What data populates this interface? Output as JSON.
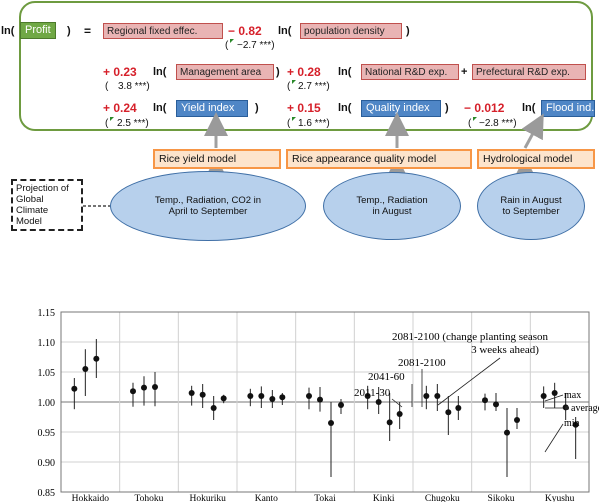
{
  "equation": {
    "ln": "ln(",
    "lhs_var": "Profit",
    "close_paren": ")",
    "equals": "=",
    "regional_fixed": "Regional fixed effec.",
    "c1": "− 0.82",
    "v1": "population density",
    "t1_a": "(",
    "t1_b": "−2.7  ***)",
    "c2": "+ 0.23",
    "v2": "Management area",
    "t2_a": "(",
    "t2_b": "3.8   ***)",
    "c3": "+ 0.28",
    "v3": "National R&D exp.",
    "plus": "+",
    "v3b": "Prefectural R&D exp.",
    "t3_a": "(",
    "t3_b": "2.7   ***)",
    "c4": "+ 0.24",
    "v4": "Yield index",
    "t4_a": "(",
    "t4_b": "2.5   ***)",
    "c5": "+ 0.15",
    "v5": "Quality index",
    "t5_a": "(",
    "t5_b": "1.6   ***)",
    "c6": "− 0.012",
    "v6": "Flood ind.",
    "t6_a": "(",
    "t6_b": "−2.8  ***)"
  },
  "models": {
    "rice_yield": "Rice yield model",
    "rice_quality": "Rice appearance quality model",
    "hydrological": "Hydrological model"
  },
  "climate_box": [
    "Projection of",
    "Global Climate",
    "Model"
  ],
  "inputs": {
    "yield_inputs": [
      "Temp., Radiation, CO2 in",
      "April to September"
    ],
    "quality_inputs": [
      "Temp., Radiation",
      "in August"
    ],
    "hydro_inputs": [
      "Rain in August",
      "to September"
    ]
  },
  "colors": {
    "green": "#70a845",
    "blue": "#4f86c6",
    "pink": "#e9b4b4",
    "orange": "#f79646",
    "red": "#d6202a"
  },
  "chart_data": {
    "type": "scatter",
    "categories": [
      "Hokkaido",
      "Tohoku",
      "Hokuriku",
      "Kanto",
      "Tokai",
      "Kinki",
      "Chugoku",
      "Sikoku",
      "Kyushu"
    ],
    "ylim": [
      0.85,
      1.15
    ],
    "yticks": [
      "0.85",
      "0.90",
      "0.95",
      "1.00",
      "1.05",
      "1.10",
      "1.15"
    ],
    "grid": true,
    "series": [
      {
        "name": "2011-30",
        "average": [
          1.022,
          1.018,
          1.015,
          1.01,
          1.01,
          1.01,
          1.01,
          1.003,
          1.01
        ],
        "max": [
          1.04,
          1.032,
          1.027,
          1.022,
          1.024,
          1.027,
          1.027,
          1.014,
          1.026
        ],
        "min": [
          0.988,
          0.992,
          0.994,
          0.993,
          0.988,
          0.988,
          0.988,
          0.986,
          0.99
        ]
      },
      {
        "name": "2041-60",
        "average": [
          1.055,
          1.024,
          1.012,
          1.01,
          1.004,
          1.0,
          1.01,
          0.996,
          1.015
        ],
        "max": [
          1.088,
          1.043,
          1.03,
          1.026,
          1.025,
          1.025,
          1.03,
          1.015,
          1.032
        ],
        "min": [
          1.01,
          0.994,
          0.99,
          0.99,
          0.984,
          0.98,
          0.985,
          0.985,
          0.99
        ]
      },
      {
        "name": "2081-2100",
        "average": [
          1.072,
          1.025,
          0.99,
          1.005,
          0.965,
          0.966,
          0.983,
          0.949,
          0.991
        ],
        "max": [
          1.105,
          1.05,
          1.01,
          1.02,
          1.0,
          1.015,
          1.01,
          0.99,
          1.015
        ],
        "min": [
          1.04,
          0.993,
          0.97,
          0.99,
          0.875,
          0.935,
          0.945,
          0.875,
          0.97
        ]
      },
      {
        "name": "2081-2100 (change planting season 3 weeks ahead)",
        "average": [
          null,
          null,
          1.006,
          1.008,
          0.995,
          0.98,
          0.99,
          0.97,
          0.962
        ],
        "max": [
          null,
          null,
          1.012,
          1.015,
          1.005,
          1.0,
          1.01,
          0.99,
          0.975
        ],
        "min": [
          null,
          null,
          0.998,
          0.995,
          0.98,
          0.955,
          0.97,
          0.955,
          0.905
        ]
      }
    ],
    "annotations": [
      "2081-2100 (change planting season",
      "3 weeks ahead)",
      "2081-2100",
      "2041-60",
      "2011-30"
    ],
    "legend": [
      "max",
      "average",
      "min"
    ]
  }
}
